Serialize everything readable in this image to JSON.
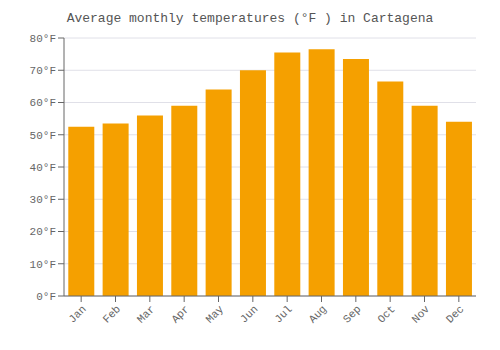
{
  "chart_data": {
    "type": "bar",
    "title": "Average monthly temperatures (°F ) in Cartagena",
    "categories": [
      "Jan",
      "Feb",
      "Mar",
      "Apr",
      "May",
      "Jun",
      "Jul",
      "Aug",
      "Sep",
      "Oct",
      "Nov",
      "Dec"
    ],
    "values": [
      52.5,
      53.5,
      56.0,
      59.0,
      64.0,
      70.0,
      75.5,
      76.5,
      73.5,
      66.5,
      59.0,
      54.0
    ],
    "color": "#F5A000",
    "ylim": [
      0,
      80
    ],
    "yticks": [
      {
        "value": 0,
        "label": "0°F"
      },
      {
        "value": 10,
        "label": "10°F"
      },
      {
        "value": 20,
        "label": "20°F"
      },
      {
        "value": 30,
        "label": "30°F"
      },
      {
        "value": 40,
        "label": "40°F"
      },
      {
        "value": 50,
        "label": "50°F"
      },
      {
        "value": 60,
        "label": "60°F"
      },
      {
        "value": 70,
        "label": "70°F"
      },
      {
        "value": 80,
        "label": "80°F"
      }
    ],
    "grid": true
  }
}
